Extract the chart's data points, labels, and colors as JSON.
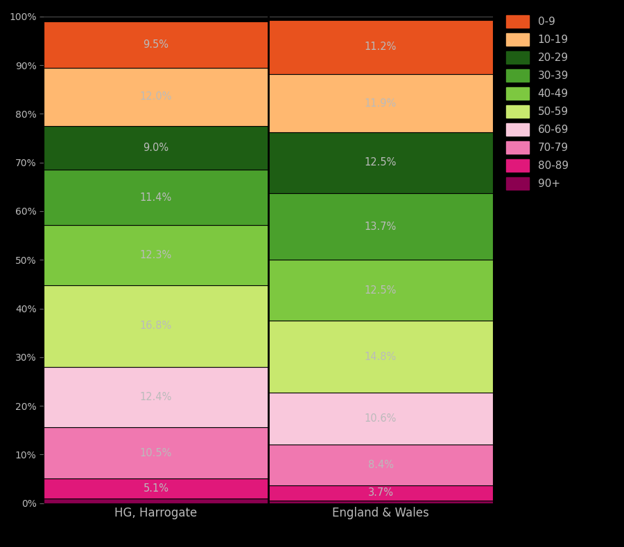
{
  "categories": [
    "HG, Harrogate",
    "England & Wales"
  ],
  "colors": {
    "0-9": "#e8521e",
    "10-19": "#ffb870",
    "20-29": "#1e5e14",
    "30-39": "#4aa02c",
    "40-49": "#7dc840",
    "50-59": "#c8e86e",
    "60-69": "#f9c8dc",
    "70-79": "#f078b0",
    "80-89": "#e0187a",
    "90+": "#8b0050"
  },
  "values": {
    "HG, Harrogate": {
      "90+": 1.0,
      "80-89": 4.1,
      "70-79": 10.5,
      "60-69": 12.4,
      "50-59": 16.8,
      "40-49": 12.3,
      "30-39": 11.4,
      "20-29": 9.0,
      "10-19": 12.0,
      "0-9": 9.5
    },
    "England & Wales": {
      "90+": 0.6,
      "80-89": 3.1,
      "70-79": 8.4,
      "60-69": 10.6,
      "50-59": 14.8,
      "40-49": 12.5,
      "30-39": 13.7,
      "20-29": 12.5,
      "10-19": 11.9,
      "0-9": 11.2
    }
  },
  "labels": {
    "HG, Harrogate": {
      "90+": "",
      "80-89": "5.1%",
      "70-79": "10.5%",
      "60-69": "12.4%",
      "50-59": "16.8%",
      "40-49": "12.3%",
      "30-39": "11.4%",
      "20-29": "9.0%",
      "10-19": "12.0%",
      "0-9": "9.5%"
    },
    "England & Wales": {
      "90+": "",
      "80-89": "3.7%",
      "70-79": "8.4%",
      "60-69": "10.6%",
      "50-59": "14.8%",
      "40-49": "12.5%",
      "30-39": "13.7%",
      "20-29": "12.5%",
      "10-19": "11.9%",
      "0-9": "11.2%"
    }
  },
  "background_color": "#000000",
  "text_color": "#bbbbbb",
  "stack_order": [
    "90+",
    "80-89",
    "70-79",
    "60-69",
    "50-59",
    "40-49",
    "30-39",
    "20-29",
    "10-19",
    "0-9"
  ],
  "legend_order": [
    "0-9",
    "10-19",
    "20-29",
    "30-39",
    "40-49",
    "50-59",
    "60-69",
    "70-79",
    "80-89",
    "90+"
  ],
  "figsize": [
    9.0,
    7.9
  ],
  "dpi": 100
}
